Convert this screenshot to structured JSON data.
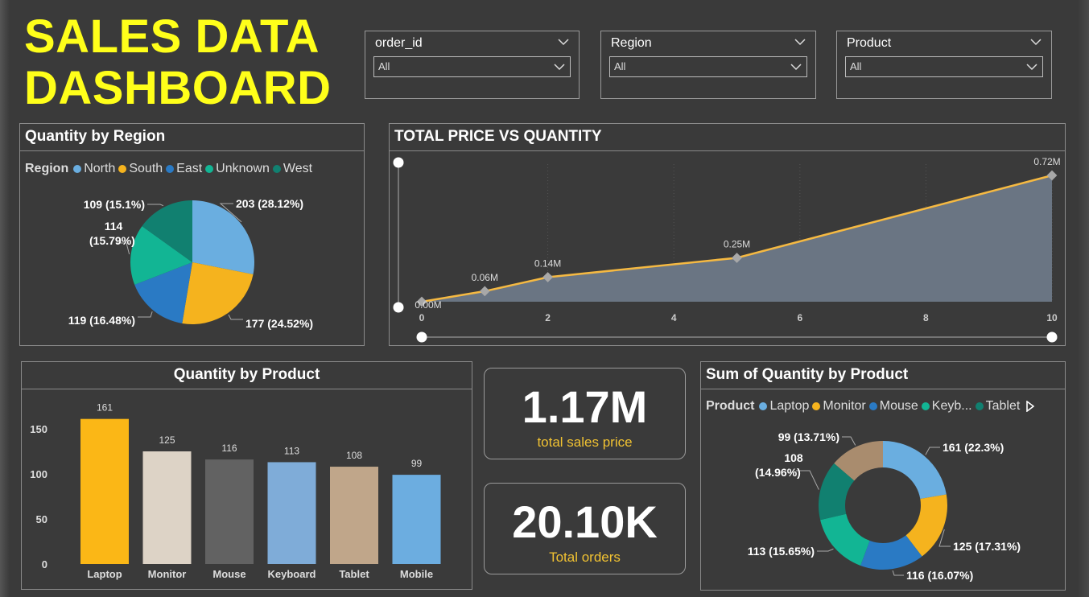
{
  "title": {
    "line1": "SALES DATA",
    "line2": "DASHBOARD"
  },
  "slicers": [
    {
      "label": "order_id",
      "value": "All"
    },
    {
      "label": "Region",
      "value": "All"
    },
    {
      "label": "Product",
      "value": "All"
    }
  ],
  "kpis": {
    "sales": {
      "value": "1.17M",
      "label": "total sales price"
    },
    "orders": {
      "value": "20.10K",
      "label": "Total orders"
    }
  },
  "colors": {
    "north": "#6aaee0",
    "south": "#f5b31e",
    "east": "#2a7ac4",
    "unknown": "#12b594",
    "west": "#118070",
    "laptop_bar": "#fbb716",
    "monitor_bar": "#ddd3c6",
    "mouse_bar": "#626262",
    "keyboard_bar": "#7facd8",
    "tablet_bar": "#c0a68a",
    "mobile_bar": "#6cade0",
    "mouse_donut": "#2a7ac4",
    "keyboard_donut": "#12b594",
    "tablet_donut": "#118070",
    "mobile_donut": "#a98c6e",
    "line": "#f5b942",
    "area": "#6a7583"
  },
  "chart_data": [
    {
      "type": "pie",
      "title": "Quantity by Region",
      "legend_title": "Region",
      "legend_placement": "top",
      "slices": [
        {
          "name": "North",
          "value": 203,
          "label": "203 (28.12%)"
        },
        {
          "name": "South",
          "value": 177,
          "label": "177 (24.52%)"
        },
        {
          "name": "East",
          "value": 119,
          "label": "119 (16.48%)"
        },
        {
          "name": "Unknown",
          "value": 114,
          "label": "114 (15.79%)"
        },
        {
          "name": "West",
          "value": 109,
          "label": "109 (15.1%)"
        }
      ]
    },
    {
      "type": "area",
      "title": "TOTAL PRICE VS QUANTITY",
      "x": [
        0,
        1,
        2,
        5,
        10
      ],
      "y": [
        0.0,
        0.06,
        0.14,
        0.25,
        0.72
      ],
      "point_labels": [
        "0.00M",
        "0.06M",
        "0.14M",
        "0.25M",
        "0.72M"
      ],
      "x_ticks": [
        0,
        2,
        4,
        6,
        8,
        10
      ],
      "xlim": [
        0,
        10
      ],
      "ylim": [
        0,
        0.72
      ],
      "grid": "vertical dotted"
    },
    {
      "type": "bar",
      "title": "Quantity by Product",
      "categories": [
        "Laptop",
        "Monitor",
        "Mouse",
        "Keyboard",
        "Tablet",
        "Mobile"
      ],
      "values": [
        161,
        125,
        116,
        113,
        108,
        99
      ],
      "y_ticks": [
        0,
        50,
        100,
        150
      ],
      "ylim": [
        0,
        175
      ]
    },
    {
      "type": "pie",
      "subtype": "donut",
      "title": "Sum of Quantity by Product",
      "legend_title": "Product",
      "legend_placement": "top",
      "legend_items": [
        "Laptop",
        "Monitor",
        "Mouse",
        "Keyb...",
        "Tablet"
      ],
      "slices": [
        {
          "name": "Laptop",
          "value": 161,
          "label": "161 (22.3%)"
        },
        {
          "name": "Monitor",
          "value": 125,
          "label": "125 (17.31%)"
        },
        {
          "name": "Mouse",
          "value": 116,
          "label": "116 (16.07%)"
        },
        {
          "name": "Keyboard",
          "value": 113,
          "label": "113 (15.65%)"
        },
        {
          "name": "Tablet",
          "value": 108,
          "label": "108 (14.96%)"
        },
        {
          "name": "Mobile",
          "value": 99,
          "label": "99 (13.71%)"
        }
      ]
    }
  ]
}
